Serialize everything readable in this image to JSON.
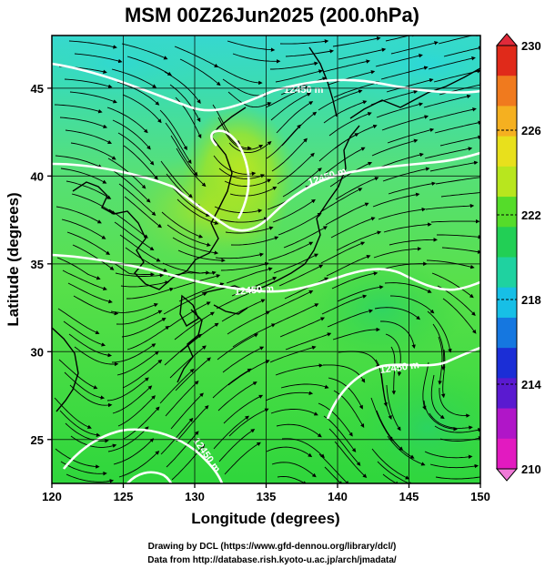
{
  "title": "MSM 00Z26Jun2025 (200.0hPa)",
  "xlabel": "Longitude (degrees)",
  "ylabel": "Latitude  (degrees)",
  "credit_line1": "Drawing by DCL (https://www.gfd-dennou.org/library/dcl/)",
  "credit_line2": "Data from http://database.rish.kyoto-u.ac.jp/arch/jmadata/",
  "map": {
    "lon_range": [
      120,
      150
    ],
    "lat_range": [
      22.5,
      48
    ],
    "lon_ticks": [
      "120",
      "125",
      "130",
      "135",
      "140",
      "145",
      "150"
    ],
    "lat_ticks": [
      "25",
      "30",
      "35",
      "40",
      "45"
    ],
    "contour_labels": [
      "12450 m",
      "12450 m",
      "12450 m",
      "12450 m",
      "12450 m"
    ],
    "field_colors": {
      "high_lat": "#35d9cc",
      "mid": "#5ee04a",
      "warm": "#b8e61e",
      "low": "#33d635"
    }
  },
  "colorbar": {
    "ticks": [
      "230",
      "226",
      "222",
      "218",
      "214",
      "210"
    ],
    "colors": [
      "#e02a1a",
      "#f07a1e",
      "#f5b020",
      "#e8e01c",
      "#b8e61e",
      "#55dc2a",
      "#22cf55",
      "#1fd2a0",
      "#17bfe6",
      "#1577e0",
      "#1b2ed6",
      "#5a1ad0",
      "#b016c8",
      "#e21ac0"
    ]
  }
}
